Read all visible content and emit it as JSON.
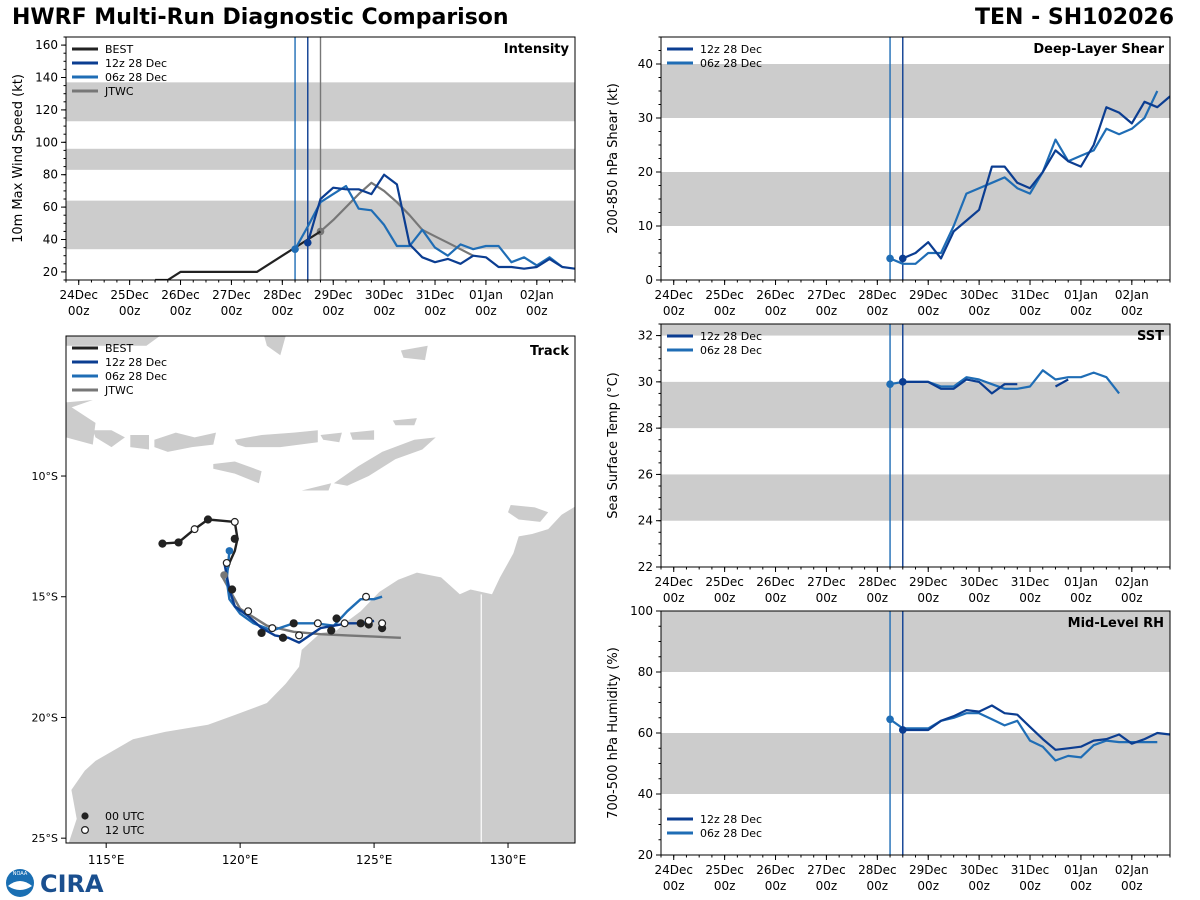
{
  "header": {
    "title": "HWRF Multi-Run Diagnostic Comparison",
    "storm": "TEN - SH102026"
  },
  "colors": {
    "best": "#222222",
    "r12": "#0b3d91",
    "r06": "#1f6db5",
    "jtwc": "#777777",
    "band": "#cccccc",
    "land": "#cccccc"
  },
  "time_ticks": [
    "24Dec",
    "25Dec",
    "26Dec",
    "27Dec",
    "28Dec",
    "29Dec",
    "30Dec",
    "31Dec",
    "01Jan",
    "02Jan"
  ],
  "time_sub": "00z",
  "vlines": {
    "r06": 4.25,
    "r12": 4.5,
    "jtwc": 4.75
  },
  "logo": {
    "text": "CIRA",
    "noaa": "NOAA"
  },
  "chart_data": [
    {
      "id": "intensity",
      "type": "line",
      "title": "Intensity",
      "xlabel": "",
      "ylabel": "10m Max Wind Speed (kt)",
      "xlim": [
        -0.25,
        9.75
      ],
      "ylim": [
        15,
        165
      ],
      "yticks": [
        20,
        40,
        60,
        80,
        100,
        120,
        140,
        160
      ],
      "bands": [
        [
          34,
          64
        ],
        [
          83,
          96
        ],
        [
          113,
          137
        ]
      ],
      "legend": [
        "BEST",
        "12z 28 Dec",
        "06z 28 Dec",
        "JTWC"
      ],
      "series": [
        {
          "name": "BEST",
          "key": "best",
          "x": [
            1.5,
            1.75,
            2.0,
            2.5,
            3.0,
            3.5,
            4.0,
            4.25,
            4.5,
            4.75
          ],
          "y": [
            15,
            15,
            20,
            20,
            20,
            20,
            30,
            35,
            40,
            45
          ]
        },
        {
          "name": "12z 28 Dec",
          "key": "r12",
          "x": [
            4.5,
            4.75,
            5.0,
            5.25,
            5.5,
            5.75,
            6.0,
            6.25,
            6.5,
            6.75,
            7.0,
            7.25,
            7.5,
            7.75,
            8.0,
            8.25,
            8.5,
            8.75,
            9.0,
            9.25,
            9.5,
            9.75
          ],
          "y": [
            38,
            65,
            72,
            71,
            71,
            68,
            80,
            74,
            37,
            29,
            26,
            28,
            25,
            30,
            29,
            23,
            23,
            22,
            23,
            28,
            23,
            22
          ]
        },
        {
          "name": "06z 28 Dec",
          "key": "r06",
          "x": [
            4.25,
            4.5,
            4.75,
            5.0,
            5.25,
            5.5,
            5.75,
            6.0,
            6.25,
            6.5,
            6.75,
            7.0,
            7.25,
            7.5,
            7.75,
            8.0,
            8.25,
            8.5,
            8.75,
            9.0,
            9.25,
            9.5
          ],
          "y": [
            34,
            48,
            63,
            68,
            73,
            59,
            58,
            49,
            36,
            36,
            46,
            35,
            30,
            37,
            34,
            36,
            36,
            26,
            29,
            24,
            29,
            23
          ]
        },
        {
          "name": "JTWC",
          "key": "jtwc",
          "x": [
            4.75,
            5.0,
            5.25,
            5.5,
            5.75,
            6.0,
            6.25,
            6.5,
            6.75,
            7.0,
            7.25,
            7.5,
            7.75
          ],
          "y": [
            45,
            52,
            60,
            68,
            75,
            70,
            63,
            55,
            46,
            42,
            38,
            34,
            30
          ]
        }
      ]
    },
    {
      "id": "track",
      "type": "map",
      "title": "Track",
      "lon_range": [
        113.5,
        132.5
      ],
      "lat_range": [
        -25.2,
        -4.2
      ],
      "lon_ticks": [
        115,
        120,
        125,
        130
      ],
      "lon_tick_labels": [
        "115°E",
        "120°E",
        "125°E",
        "130°E"
      ],
      "lat_ticks": [
        -10,
        -15,
        -20,
        -25
      ],
      "lat_tick_labels": [
        "10°S",
        "15°S",
        "20°S",
        "25°S"
      ],
      "legend": [
        "BEST",
        "12z 28 Dec",
        "06z 28 Dec",
        "JTWC"
      ],
      "marker_legend": [
        "00 UTC",
        "12 UTC"
      ],
      "series": [
        {
          "name": "BEST",
          "key": "best",
          "lon": [
            117.1,
            117.7,
            118.3,
            118.8,
            119.3,
            119.8,
            119.9,
            119.8,
            119.6,
            119.5,
            119.4
          ],
          "lat": [
            -12.8,
            -12.75,
            -12.2,
            -11.8,
            -11.85,
            -11.9,
            -12.6,
            -13.1,
            -13.6,
            -14.0,
            -14.1
          ]
        },
        {
          "name": "12z 28 Dec",
          "key": "r12",
          "lon": [
            119.4,
            119.6,
            119.8,
            120.3,
            120.8,
            121.3,
            121.8,
            122.2,
            122.6,
            123.0,
            123.5,
            124.0,
            124.5,
            125.0
          ],
          "lat": [
            -13.55,
            -14.7,
            -15.4,
            -15.8,
            -16.3,
            -16.6,
            -16.7,
            -16.9,
            -16.6,
            -16.3,
            -16.2,
            -16.1,
            -16.1,
            -16.0
          ]
        },
        {
          "name": "06z 28 Dec",
          "key": "r06",
          "lon": [
            119.6,
            119.5,
            119.6,
            120.0,
            120.5,
            121.2,
            122.0,
            122.8,
            123.5,
            124.0,
            124.5,
            125.0,
            125.3
          ],
          "lat": [
            -13.1,
            -14.3,
            -15.1,
            -15.7,
            -16.1,
            -16.4,
            -16.1,
            -16.1,
            -16.2,
            -15.6,
            -15.1,
            -15.1,
            -15.0
          ]
        },
        {
          "name": "JTWC",
          "key": "jtwc",
          "lon": [
            119.3,
            120.0,
            121.0,
            122.0,
            123.0,
            124.0,
            125.0,
            126.0
          ],
          "lat": [
            -14.1,
            -15.5,
            -16.2,
            -16.45,
            -16.55,
            -16.6,
            -16.65,
            -16.7
          ]
        }
      ],
      "markers_filled": [
        [
          117.1,
          -12.8
        ],
        [
          117.7,
          -12.75
        ],
        [
          118.8,
          -11.8
        ],
        [
          119.8,
          -12.6
        ],
        [
          119.7,
          -14.7
        ],
        [
          120.8,
          -16.5
        ],
        [
          121.6,
          -16.7
        ],
        [
          122.0,
          -16.1
        ],
        [
          123.4,
          -16.4
        ],
        [
          123.6,
          -15.9
        ],
        [
          124.5,
          -16.1
        ],
        [
          124.8,
          -16.15
        ],
        [
          125.3,
          -16.3
        ]
      ],
      "markers_open": [
        [
          118.3,
          -12.2
        ],
        [
          119.8,
          -11.9
        ],
        [
          119.5,
          -13.6
        ],
        [
          120.3,
          -15.6
        ],
        [
          121.2,
          -16.3
        ],
        [
          122.2,
          -16.6
        ],
        [
          122.9,
          -16.1
        ],
        [
          123.9,
          -16.1
        ],
        [
          124.7,
          -15.0
        ],
        [
          124.8,
          -16.0
        ],
        [
          125.3,
          -16.1
        ]
      ],
      "markers_color": [
        [
          119.6,
          -13.1
        ],
        [
          119.4,
          -14.1
        ]
      ]
    },
    {
      "id": "shear",
      "type": "line",
      "title": "Deep-Layer Shear",
      "xlabel": "",
      "ylabel": "200-850 hPa Shear (kt)",
      "xlim": [
        -0.25,
        9.75
      ],
      "ylim": [
        0,
        45
      ],
      "yticks": [
        0,
        10,
        20,
        30,
        40
      ],
      "bands": [
        [
          10,
          20
        ],
        [
          30,
          40
        ]
      ],
      "legend": [
        "12z 28 Dec",
        "06z 28 Dec"
      ],
      "series": [
        {
          "name": "12z 28 Dec",
          "key": "r12",
          "x": [
            4.5,
            4.75,
            5.0,
            5.25,
            5.5,
            5.75,
            6.0,
            6.25,
            6.5,
            6.75,
            7.0,
            7.25,
            7.5,
            7.75,
            8.0,
            8.25,
            8.5,
            8.75,
            9.0,
            9.25,
            9.5,
            9.75
          ],
          "y": [
            4,
            5,
            7,
            4,
            9,
            11,
            13,
            21,
            21,
            18,
            17,
            20,
            24,
            22,
            21,
            25,
            32,
            31,
            29,
            33,
            32,
            34
          ]
        },
        {
          "name": "06z 28 Dec",
          "key": "r06",
          "x": [
            4.25,
            4.5,
            4.75,
            5.0,
            5.25,
            5.5,
            5.75,
            6.0,
            6.25,
            6.5,
            6.75,
            7.0,
            7.25,
            7.5,
            7.75,
            8.0,
            8.25,
            8.5,
            8.75,
            9.0,
            9.25,
            9.5
          ],
          "y": [
            4,
            3,
            3,
            5,
            5,
            10,
            16,
            17,
            18,
            19,
            17,
            16,
            20,
            26,
            22,
            23,
            24,
            28,
            27,
            28,
            30,
            35
          ]
        }
      ]
    },
    {
      "id": "sst",
      "type": "line",
      "title": "SST",
      "xlabel": "",
      "ylabel": "Sea Surface Temp (°C)",
      "xlim": [
        -0.25,
        9.75
      ],
      "ylim": [
        22,
        32.5
      ],
      "yticks": [
        22,
        24,
        26,
        28,
        30,
        32
      ],
      "bands": [
        [
          24,
          26
        ],
        [
          28,
          30
        ],
        [
          32,
          32.5
        ]
      ],
      "legend": [
        "12z 28 Dec",
        "06z 28 Dec"
      ],
      "series": [
        {
          "name": "12z 28 Dec",
          "key": "r12",
          "x": [
            4.5,
            4.75,
            5.0,
            5.25,
            5.5,
            5.75,
            6.0,
            6.25,
            6.5,
            6.75
          ],
          "y": [
            30.0,
            30.0,
            30.0,
            29.7,
            29.7,
            30.1,
            30.0,
            29.5,
            29.9,
            29.9
          ]
        },
        {
          "name": "12z 28 Dec (b)",
          "key": "r12",
          "x": [
            7.5,
            7.75
          ],
          "y": [
            29.8,
            30.1
          ]
        },
        {
          "name": "06z 28 Dec",
          "key": "r06",
          "x": [
            4.25,
            4.5,
            4.75,
            5.0,
            5.25,
            5.5,
            5.75,
            6.0,
            6.25,
            6.5,
            6.75,
            7.0,
            7.25,
            7.5,
            7.75,
            8.0,
            8.25,
            8.5,
            8.75
          ],
          "y": [
            29.9,
            30.0,
            30.0,
            30.0,
            29.8,
            29.8,
            30.2,
            30.1,
            29.9,
            29.7,
            29.7,
            29.8,
            30.5,
            30.1,
            30.2,
            30.2,
            30.4,
            30.2,
            29.5
          ]
        }
      ]
    },
    {
      "id": "rh",
      "type": "line",
      "title": "Mid-Level RH",
      "xlabel": "",
      "ylabel": "700-500 hPa Humidity (%)",
      "xlim": [
        -0.25,
        9.75
      ],
      "ylim": [
        20,
        100
      ],
      "yticks": [
        20,
        40,
        60,
        80,
        100
      ],
      "bands": [
        [
          40,
          60
        ],
        [
          80,
          100
        ]
      ],
      "legend": [
        "12z 28 Dec",
        "06z 28 Dec"
      ],
      "series": [
        {
          "name": "12z 28 Dec",
          "key": "r12",
          "x": [
            4.5,
            4.75,
            5.0,
            5.25,
            5.5,
            5.75,
            6.0,
            6.25,
            6.5,
            6.75,
            7.0,
            7.25,
            7.5,
            7.75,
            8.0,
            8.25,
            8.5,
            8.75,
            9.0,
            9.25,
            9.5,
            9.75
          ],
          "y": [
            61,
            61,
            61,
            64,
            65.5,
            67.5,
            67,
            69,
            66.5,
            66,
            62,
            58,
            54.5,
            55,
            55.5,
            57.5,
            58,
            59.5,
            56.5,
            58,
            60,
            59.5
          ]
        },
        {
          "name": "06z 28 Dec",
          "key": "r06",
          "x": [
            4.25,
            4.5,
            4.75,
            5.0,
            5.25,
            5.5,
            5.75,
            6.0,
            6.25,
            6.5,
            6.75,
            7.0,
            7.25,
            7.5,
            7.75,
            8.0,
            8.25,
            8.5,
            8.75,
            9.0,
            9.25,
            9.5
          ],
          "y": [
            64.5,
            61.5,
            61.5,
            61.5,
            64,
            65,
            66.5,
            66.5,
            64.5,
            62.5,
            64,
            57.5,
            55.5,
            51,
            52.5,
            52,
            56,
            57.5,
            57,
            57,
            57,
            57
          ]
        }
      ]
    }
  ]
}
